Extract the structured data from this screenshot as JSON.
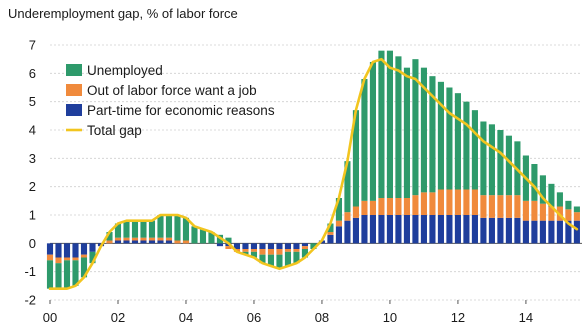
{
  "chart_data": {
    "type": "bar",
    "stacked": true,
    "title": "Underemployment gap, % of labor force",
    "xlabel": "",
    "ylabel": "",
    "ylim": [
      -2,
      7
    ],
    "yticks": [
      -2,
      -1,
      0,
      1,
      2,
      3,
      4,
      5,
      6,
      7
    ],
    "xlim": [
      2000.0,
      2015.65
    ],
    "xticks": [
      {
        "value": 2000,
        "label": "00"
      },
      {
        "value": 2002,
        "label": "02"
      },
      {
        "value": 2004,
        "label": "04"
      },
      {
        "value": 2006,
        "label": "06"
      },
      {
        "value": 2008,
        "label": "08"
      },
      {
        "value": 2010,
        "label": "10"
      },
      {
        "value": 2012,
        "label": "12"
      },
      {
        "value": 2014,
        "label": "14"
      }
    ],
    "grid": true,
    "legend_position": "top-left",
    "colors": {
      "unemployed": "#2e9a6b",
      "out_of_labor_force": "#f08a3c",
      "part_time": "#1f3e9c",
      "total_gap": "#f2c51f"
    },
    "x": [
      2000.0,
      2000.25,
      2000.5,
      2000.75,
      2001.0,
      2001.25,
      2001.5,
      2001.75,
      2002.0,
      2002.25,
      2002.5,
      2002.75,
      2003.0,
      2003.25,
      2003.5,
      2003.75,
      2004.0,
      2004.25,
      2004.5,
      2004.75,
      2005.0,
      2005.25,
      2005.5,
      2005.75,
      2006.0,
      2006.25,
      2006.5,
      2006.75,
      2007.0,
      2007.25,
      2007.5,
      2007.75,
      2008.0,
      2008.25,
      2008.5,
      2008.75,
      2009.0,
      2009.25,
      2009.5,
      2009.75,
      2010.0,
      2010.25,
      2010.5,
      2010.75,
      2011.0,
      2011.25,
      2011.5,
      2011.75,
      2012.0,
      2012.25,
      2012.5,
      2012.75,
      2013.0,
      2013.25,
      2013.5,
      2013.75,
      2014.0,
      2014.25,
      2014.5,
      2014.75,
      2015.0,
      2015.25,
      2015.5
    ],
    "series": [
      {
        "name": "Unemployed",
        "key": "unemployed",
        "values": [
          -1.0,
          -0.9,
          -1.0,
          -0.9,
          -0.7,
          -0.4,
          0.0,
          0.3,
          0.5,
          0.6,
          0.6,
          0.6,
          0.6,
          0.8,
          0.8,
          0.9,
          0.8,
          0.6,
          0.5,
          0.4,
          0.3,
          0.2,
          0.0,
          -0.1,
          -0.2,
          -0.3,
          -0.4,
          -0.5,
          -0.5,
          -0.4,
          -0.3,
          -0.2,
          0.0,
          0.3,
          0.8,
          1.8,
          3.4,
          4.3,
          4.9,
          5.2,
          5.2,
          5.0,
          4.6,
          4.8,
          4.4,
          4.1,
          3.8,
          3.6,
          3.4,
          3.1,
          2.8,
          2.6,
          2.5,
          2.3,
          2.1,
          1.9,
          1.6,
          1.3,
          1.0,
          0.8,
          0.5,
          0.3,
          0.2
        ]
      },
      {
        "name": "Out of labor force want a job",
        "key": "out_of_labor_force",
        "values": [
          -0.2,
          -0.2,
          -0.1,
          -0.1,
          -0.1,
          0.0,
          0.0,
          0.1,
          0.1,
          0.1,
          0.1,
          0.1,
          0.1,
          0.1,
          0.1,
          0.1,
          0.1,
          0.0,
          0.0,
          0.0,
          0.0,
          -0.1,
          -0.1,
          -0.1,
          -0.1,
          -0.2,
          -0.2,
          -0.2,
          -0.1,
          -0.1,
          -0.1,
          0.0,
          0.0,
          0.1,
          0.2,
          0.3,
          0.4,
          0.5,
          0.5,
          0.6,
          0.6,
          0.6,
          0.6,
          0.7,
          0.8,
          0.8,
          0.9,
          0.9,
          0.9,
          0.9,
          0.9,
          0.8,
          0.8,
          0.8,
          0.8,
          0.8,
          0.7,
          0.7,
          0.6,
          0.5,
          0.5,
          0.4,
          0.3
        ]
      },
      {
        "name": "Part-time for economic reasons",
        "key": "part_time",
        "values": [
          -0.4,
          -0.5,
          -0.5,
          -0.5,
          -0.4,
          -0.3,
          -0.1,
          0.0,
          0.1,
          0.1,
          0.1,
          0.1,
          0.1,
          0.1,
          0.1,
          0.0,
          0.0,
          0.0,
          0.0,
          0.0,
          -0.1,
          -0.1,
          -0.2,
          -0.2,
          -0.2,
          -0.2,
          -0.2,
          -0.2,
          -0.2,
          -0.2,
          -0.1,
          0.0,
          0.1,
          0.3,
          0.6,
          0.8,
          0.9,
          1.0,
          1.0,
          1.0,
          1.0,
          1.0,
          1.0,
          1.0,
          1.0,
          1.0,
          1.0,
          1.0,
          1.0,
          1.0,
          1.0,
          0.9,
          0.9,
          0.9,
          0.9,
          0.9,
          0.8,
          0.8,
          0.8,
          0.8,
          0.8,
          0.8,
          0.8
        ]
      },
      {
        "name": "Total gap",
        "key": "total_gap",
        "type": "line",
        "values": [
          -1.6,
          -1.6,
          -1.6,
          -1.5,
          -1.2,
          -0.7,
          -0.1,
          0.4,
          0.7,
          0.8,
          0.8,
          0.8,
          0.8,
          1.0,
          1.0,
          1.0,
          0.9,
          0.6,
          0.5,
          0.4,
          0.2,
          0.0,
          -0.3,
          -0.4,
          -0.5,
          -0.7,
          -0.8,
          -0.9,
          -0.8,
          -0.7,
          -0.5,
          -0.2,
          0.1,
          0.7,
          1.6,
          2.9,
          4.7,
          5.8,
          6.4,
          6.5,
          6.2,
          6.1,
          5.9,
          5.8,
          5.5,
          5.2,
          4.9,
          4.6,
          4.4,
          4.2,
          3.9,
          3.6,
          3.4,
          3.2,
          2.9,
          2.6,
          2.3,
          2.0,
          1.6,
          1.3,
          1.0,
          0.7,
          0.5
        ]
      }
    ]
  }
}
